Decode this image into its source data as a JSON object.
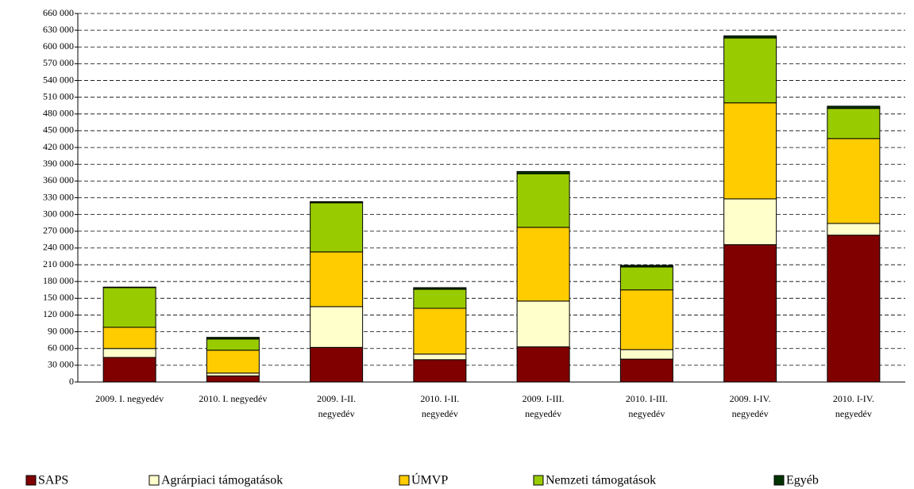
{
  "chart_data": {
    "type": "stacked_bar",
    "categories": [
      "2009. I. negyedév",
      "2010. I. negyedév",
      "2009. I-II.\nnegyedév",
      "2010. I-II.\nnegyedév",
      "2009. I-III.\nnegyedév",
      "2010. I-III.\nnegyedév",
      "2009. I-IV.\nnegyedév",
      "2010. I-IV.\nnegyedév"
    ],
    "series": [
      {
        "name": "SAPS",
        "color": "#800000",
        "values": [
          44000,
          11000,
          62000,
          40000,
          63000,
          41000,
          246000,
          263000
        ]
      },
      {
        "name": "Agrárpiaci támogatások",
        "color": "#ffffcc",
        "values": [
          16000,
          5000,
          73000,
          10000,
          82000,
          17000,
          82000,
          21000
        ]
      },
      {
        "name": "ÚMVP",
        "color": "#ffcc00",
        "values": [
          38000,
          41000,
          98000,
          82000,
          132000,
          107000,
          172000,
          152000
        ]
      },
      {
        "name": "Nemzeti támogatások",
        "color": "#99cc00",
        "values": [
          71000,
          20000,
          88000,
          34000,
          96000,
          41000,
          116000,
          54000
        ]
      },
      {
        "name": "Egyéb",
        "color": "#003300",
        "values": [
          1000,
          3000,
          2000,
          3000,
          4000,
          3000,
          4000,
          4000
        ]
      }
    ],
    "ylim": [
      0,
      660000
    ],
    "yticks": [
      0,
      {
        "value": 30000,
        "label": "30 000"
      },
      {
        "value": 60000,
        "label": "60 000"
      },
      {
        "value": 90000,
        "label": "90 000"
      },
      {
        "value": 120000,
        "label": "120 000"
      },
      {
        "value": 150000,
        "label": "150 000"
      },
      {
        "value": 180000,
        "label": "180 000"
      },
      {
        "value": 210000,
        "label": "210 000"
      },
      {
        "value": 240000,
        "label": "240 000"
      },
      {
        "value": 270000,
        "label": "270 000"
      },
      {
        "value": 300000,
        "label": "300 000"
      },
      {
        "value": 330000,
        "label": "330 000"
      },
      {
        "value": 360000,
        "label": "360 000"
      },
      {
        "value": 390000,
        "label": "390 000"
      },
      {
        "value": 420000,
        "label": "420 000"
      },
      {
        "value": 450000,
        "label": "450 000"
      },
      {
        "value": 480000,
        "label": "480 000"
      },
      {
        "value": 510000,
        "label": "510 000"
      },
      {
        "value": 540000,
        "label": "540 000"
      },
      {
        "value": 570000,
        "label": "570 000"
      },
      {
        "value": 600000,
        "label": "600 000"
      },
      {
        "value": 630000,
        "label": "630 000"
      },
      {
        "value": 660000,
        "label": "660 000"
      }
    ],
    "grid": true,
    "legend": "bottom"
  }
}
